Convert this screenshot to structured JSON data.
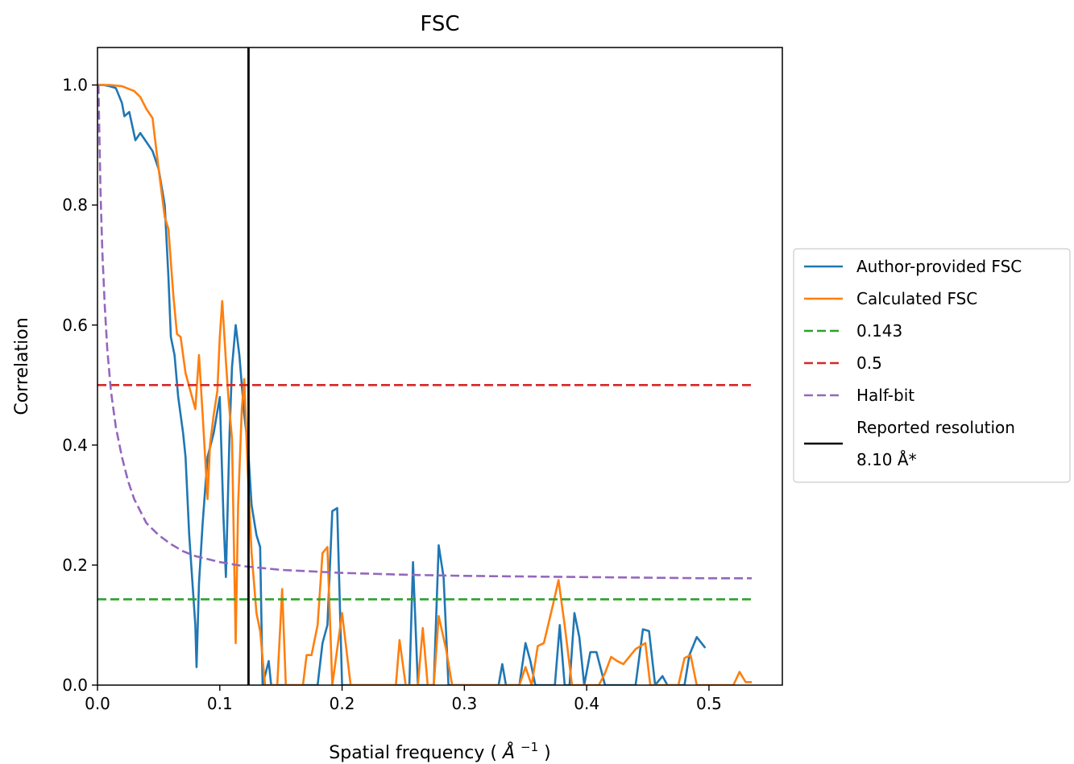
{
  "chart_data": {
    "type": "line",
    "title": "FSC",
    "xlabel": "Spatial frequency",
    "xlabel_unit_base": "Å",
    "xlabel_unit_exp": "−1",
    "ylabel": "Correlation",
    "xlim": [
      0.0,
      0.56
    ],
    "ylim": [
      0.0,
      1.0625
    ],
    "xticks": [
      0.0,
      0.1,
      0.2,
      0.3,
      0.4,
      0.5
    ],
    "xtick_labels": [
      "0.0",
      "0.1",
      "0.2",
      "0.3",
      "0.4",
      "0.5"
    ],
    "yticks": [
      0.0,
      0.2,
      0.4,
      0.6,
      0.8,
      1.0
    ],
    "ytick_labels": [
      "0.0",
      "0.2",
      "0.4",
      "0.6",
      "0.8",
      "1.0"
    ],
    "grid": false,
    "legend_placement": "outside-right",
    "series": [
      {
        "name": "Author-provided FSC",
        "color": "#1f77b4",
        "style": "solid",
        "points": [
          [
            0.0,
            1.0
          ],
          [
            0.005,
            1.0
          ],
          [
            0.01,
            0.998
          ],
          [
            0.015,
            0.995
          ],
          [
            0.02,
            0.97
          ],
          [
            0.022,
            0.948
          ],
          [
            0.026,
            0.955
          ],
          [
            0.031,
            0.908
          ],
          [
            0.035,
            0.92
          ],
          [
            0.04,
            0.905
          ],
          [
            0.045,
            0.89
          ],
          [
            0.05,
            0.86
          ],
          [
            0.055,
            0.8
          ],
          [
            0.058,
            0.68
          ],
          [
            0.06,
            0.58
          ],
          [
            0.063,
            0.55
          ],
          [
            0.066,
            0.48
          ],
          [
            0.07,
            0.42
          ],
          [
            0.072,
            0.38
          ],
          [
            0.075,
            0.25
          ],
          [
            0.08,
            0.1
          ],
          [
            0.081,
            0.03
          ],
          [
            0.083,
            0.17
          ],
          [
            0.086,
            0.27
          ],
          [
            0.09,
            0.38
          ],
          [
            0.095,
            0.42
          ],
          [
            0.1,
            0.48
          ],
          [
            0.103,
            0.28
          ],
          [
            0.105,
            0.18
          ],
          [
            0.108,
            0.42
          ],
          [
            0.11,
            0.53
          ],
          [
            0.113,
            0.6
          ],
          [
            0.116,
            0.55
          ],
          [
            0.12,
            0.45
          ],
          [
            0.123,
            0.4
          ],
          [
            0.126,
            0.3
          ],
          [
            0.13,
            0.25
          ],
          [
            0.133,
            0.23
          ],
          [
            0.135,
            0.0
          ],
          [
            0.14,
            0.04
          ],
          [
            0.142,
            0.0
          ],
          [
            0.18,
            0.0
          ],
          [
            0.184,
            0.07
          ],
          [
            0.188,
            0.1
          ],
          [
            0.192,
            0.29
          ],
          [
            0.196,
            0.295
          ],
          [
            0.2,
            0.0
          ],
          [
            0.255,
            0.0
          ],
          [
            0.258,
            0.205
          ],
          [
            0.262,
            0.0
          ],
          [
            0.275,
            0.0
          ],
          [
            0.279,
            0.233
          ],
          [
            0.283,
            0.18
          ],
          [
            0.287,
            0.0
          ],
          [
            0.328,
            0.0
          ],
          [
            0.331,
            0.035
          ],
          [
            0.334,
            0.0
          ],
          [
            0.345,
            0.0
          ],
          [
            0.35,
            0.07
          ],
          [
            0.354,
            0.04
          ],
          [
            0.358,
            0.0
          ],
          [
            0.374,
            0.0
          ],
          [
            0.378,
            0.1
          ],
          [
            0.382,
            0.0
          ],
          [
            0.386,
            0.0
          ],
          [
            0.39,
            0.12
          ],
          [
            0.394,
            0.08
          ],
          [
            0.398,
            0.0
          ],
          [
            0.403,
            0.055
          ],
          [
            0.408,
            0.055
          ],
          [
            0.415,
            0.0
          ],
          [
            0.44,
            0.0
          ],
          [
            0.446,
            0.093
          ],
          [
            0.451,
            0.09
          ],
          [
            0.456,
            0.0
          ],
          [
            0.462,
            0.015
          ],
          [
            0.466,
            0.0
          ],
          [
            0.48,
            0.0
          ],
          [
            0.484,
            0.05
          ],
          [
            0.49,
            0.08
          ],
          [
            0.497,
            0.062
          ]
        ]
      },
      {
        "name": "Calculated FSC",
        "color": "#ff7f0e",
        "style": "solid",
        "points": [
          [
            0.0,
            1.0
          ],
          [
            0.01,
            1.0
          ],
          [
            0.02,
            0.998
          ],
          [
            0.03,
            0.99
          ],
          [
            0.035,
            0.98
          ],
          [
            0.04,
            0.96
          ],
          [
            0.045,
            0.945
          ],
          [
            0.05,
            0.86
          ],
          [
            0.055,
            0.78
          ],
          [
            0.058,
            0.76
          ],
          [
            0.062,
            0.65
          ],
          [
            0.065,
            0.585
          ],
          [
            0.068,
            0.58
          ],
          [
            0.072,
            0.52
          ],
          [
            0.076,
            0.49
          ],
          [
            0.08,
            0.46
          ],
          [
            0.083,
            0.55
          ],
          [
            0.086,
            0.45
          ],
          [
            0.09,
            0.31
          ],
          [
            0.092,
            0.4
          ],
          [
            0.095,
            0.45
          ],
          [
            0.098,
            0.49
          ],
          [
            0.1,
            0.58
          ],
          [
            0.102,
            0.64
          ],
          [
            0.105,
            0.54
          ],
          [
            0.107,
            0.48
          ],
          [
            0.11,
            0.41
          ],
          [
            0.113,
            0.07
          ],
          [
            0.115,
            0.3
          ],
          [
            0.118,
            0.46
          ],
          [
            0.12,
            0.51
          ],
          [
            0.123,
            0.35
          ],
          [
            0.126,
            0.22
          ],
          [
            0.13,
            0.12
          ],
          [
            0.133,
            0.09
          ],
          [
            0.137,
            0.0
          ],
          [
            0.147,
            0.0
          ],
          [
            0.151,
            0.16
          ],
          [
            0.154,
            0.0
          ],
          [
            0.168,
            0.0
          ],
          [
            0.171,
            0.05
          ],
          [
            0.175,
            0.05
          ],
          [
            0.18,
            0.1
          ],
          [
            0.184,
            0.22
          ],
          [
            0.188,
            0.23
          ],
          [
            0.192,
            0.0
          ],
          [
            0.2,
            0.12
          ],
          [
            0.207,
            0.0
          ],
          [
            0.215,
            0.0
          ],
          [
            0.22,
            0.0
          ],
          [
            0.244,
            0.0
          ],
          [
            0.247,
            0.075
          ],
          [
            0.252,
            0.0
          ],
          [
            0.262,
            0.0
          ],
          [
            0.266,
            0.095
          ],
          [
            0.27,
            0.0
          ],
          [
            0.275,
            0.0
          ],
          [
            0.279,
            0.115
          ],
          [
            0.285,
            0.06
          ],
          [
            0.29,
            0.0
          ],
          [
            0.345,
            0.0
          ],
          [
            0.35,
            0.03
          ],
          [
            0.355,
            0.0
          ],
          [
            0.36,
            0.065
          ],
          [
            0.365,
            0.07
          ],
          [
            0.372,
            0.13
          ],
          [
            0.377,
            0.175
          ],
          [
            0.382,
            0.1
          ],
          [
            0.388,
            0.0
          ],
          [
            0.41,
            0.0
          ],
          [
            0.415,
            0.02
          ],
          [
            0.42,
            0.047
          ],
          [
            0.425,
            0.04
          ],
          [
            0.43,
            0.035
          ],
          [
            0.44,
            0.06
          ],
          [
            0.448,
            0.07
          ],
          [
            0.452,
            0.0
          ],
          [
            0.475,
            0.0
          ],
          [
            0.48,
            0.045
          ],
          [
            0.485,
            0.05
          ],
          [
            0.49,
            0.0
          ],
          [
            0.5,
            0.0
          ],
          [
            0.504,
            0.0
          ],
          [
            0.52,
            0.0
          ],
          [
            0.525,
            0.022
          ],
          [
            0.53,
            0.005
          ],
          [
            0.535,
            0.005
          ]
        ]
      },
      {
        "name": "0.143",
        "color": "#2ca02c",
        "style": "dashed",
        "points": [
          [
            0.0,
            0.143
          ],
          [
            0.535,
            0.143
          ]
        ]
      },
      {
        "name": "0.5",
        "color": "#d62728",
        "style": "dashed",
        "points": [
          [
            0.0,
            0.5
          ],
          [
            0.535,
            0.5
          ]
        ]
      },
      {
        "name": "Half-bit",
        "color": "#9467bd",
        "style": "dashed",
        "points": [
          [
            0.0008,
            1.0
          ],
          [
            0.0015,
            0.92
          ],
          [
            0.0025,
            0.82
          ],
          [
            0.004,
            0.72
          ],
          [
            0.006,
            0.63
          ],
          [
            0.008,
            0.56
          ],
          [
            0.011,
            0.49
          ],
          [
            0.015,
            0.43
          ],
          [
            0.02,
            0.38
          ],
          [
            0.025,
            0.34
          ],
          [
            0.03,
            0.31
          ],
          [
            0.04,
            0.27
          ],
          [
            0.05,
            0.25
          ],
          [
            0.06,
            0.235
          ],
          [
            0.07,
            0.223
          ],
          [
            0.08,
            0.215
          ],
          [
            0.1,
            0.205
          ],
          [
            0.12,
            0.198
          ],
          [
            0.15,
            0.192
          ],
          [
            0.2,
            0.187
          ],
          [
            0.25,
            0.184
          ],
          [
            0.3,
            0.182
          ],
          [
            0.35,
            0.181
          ],
          [
            0.4,
            0.18
          ],
          [
            0.45,
            0.179
          ],
          [
            0.5,
            0.178
          ],
          [
            0.535,
            0.178
          ]
        ]
      }
    ],
    "vlines": [
      {
        "name_line1": "Reported resolution",
        "name_line2": " 8.10 Å*",
        "color": "#000000",
        "x": 0.1235
      }
    ]
  }
}
